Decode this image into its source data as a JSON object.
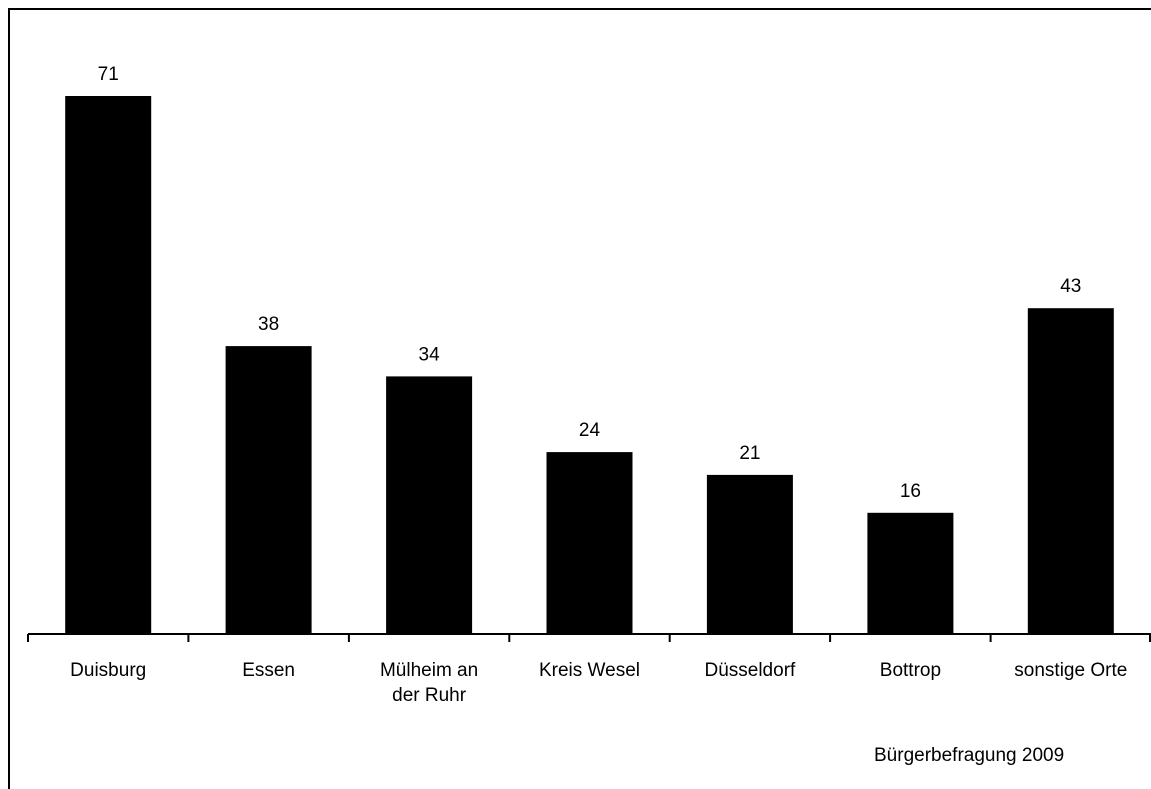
{
  "chart_data": {
    "type": "bar",
    "categories": [
      "Duisburg",
      "Essen",
      "Mülheim an der Ruhr",
      "Kreis Wesel",
      "Düsseldorf",
      "Bottrop",
      "sonstige Orte"
    ],
    "category_lines": [
      [
        "Duisburg"
      ],
      [
        "Essen"
      ],
      [
        "Mülheim an",
        "der Ruhr"
      ],
      [
        "Kreis Wesel"
      ],
      [
        "Düsseldorf"
      ],
      [
        "Bottrop"
      ],
      [
        "sonstige Orte"
      ]
    ],
    "values": [
      71,
      38,
      34,
      24,
      21,
      16,
      43
    ],
    "data_labels": [
      "71",
      "38",
      "34",
      "24",
      "21",
      "16",
      "43"
    ],
    "bar_color": "#000000",
    "grid": false,
    "legend": "none",
    "ylim": [
      0,
      71
    ]
  },
  "source_note": "Bürgerbefragung 2009"
}
